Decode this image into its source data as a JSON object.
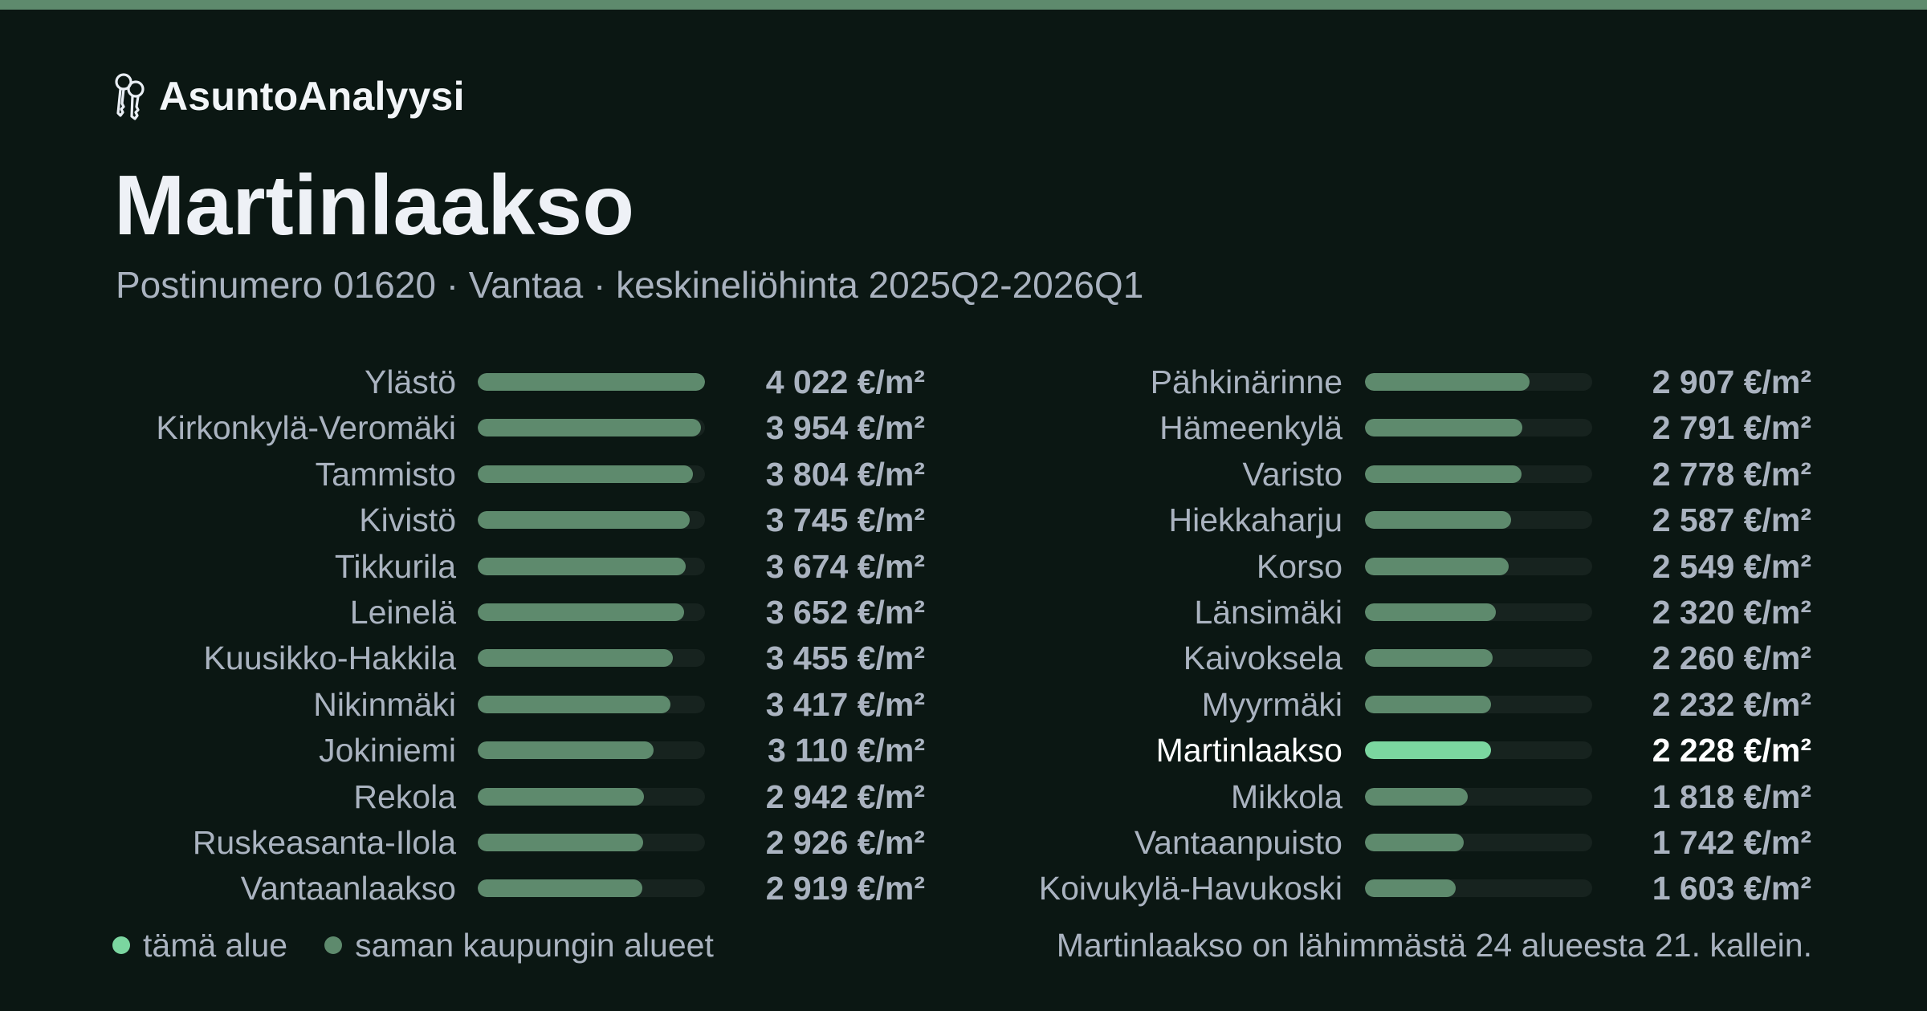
{
  "brand": {
    "name": "AsuntoAnalyysi",
    "icon": "keys-icon"
  },
  "header": {
    "title": "Martinlaakso",
    "subtitle": "Postinumero 01620 · Vantaa · keskineliöhinta 2025Q2-2026Q1"
  },
  "colors": {
    "background": "#0b1713",
    "accent_strip": "#5e8a6d",
    "bar_default": "#5e8a6d",
    "bar_highlight": "#7bd6a0",
    "bar_track": "#17231f"
  },
  "chart_data": {
    "type": "bar",
    "orientation": "horizontal",
    "unit": "€/m²",
    "xlim": [
      0,
      4022
    ],
    "highlight": "Martinlaakso",
    "categories": [
      "Ylästö",
      "Kirkonkylä-Veromäki",
      "Tammisto",
      "Kivistö",
      "Tikkurila",
      "Leinelä",
      "Kuusikko-Hakkila",
      "Nikinmäki",
      "Jokiniemi",
      "Rekola",
      "Ruskeasanta-Ilola",
      "Vantaanlaakso",
      "Pähkinärinne",
      "Hämeenkylä",
      "Varisto",
      "Hiekkaharju",
      "Korso",
      "Länsimäki",
      "Kaivoksela",
      "Myyrmäki",
      "Martinlaakso",
      "Mikkola",
      "Vantaanpuisto",
      "Koivukylä-Havukoski"
    ],
    "values": [
      4022,
      3954,
      3804,
      3745,
      3674,
      3652,
      3455,
      3417,
      3110,
      2942,
      2926,
      2919,
      2907,
      2791,
      2778,
      2587,
      2549,
      2320,
      2260,
      2232,
      2228,
      1818,
      1742,
      1603
    ],
    "value_labels": [
      "4 022 €/m²",
      "3 954 €/m²",
      "3 804 €/m²",
      "3 745 €/m²",
      "3 674 €/m²",
      "3 652 €/m²",
      "3 455 €/m²",
      "3 417 €/m²",
      "3 110 €/m²",
      "2 942 €/m²",
      "2 926 €/m²",
      "2 919 €/m²",
      "2 907 €/m²",
      "2 791 €/m²",
      "2 778 €/m²",
      "2 587 €/m²",
      "2 549 €/m²",
      "2 320 €/m²",
      "2 260 €/m²",
      "2 232 €/m²",
      "2 228 €/m²",
      "1 818 €/m²",
      "1 742 €/m²",
      "1 603 €/m²"
    ]
  },
  "legend": {
    "items": [
      {
        "label": "tämä alue",
        "color": "#7bd6a0"
      },
      {
        "label": "saman kaupungin alueet",
        "color": "#5e8a6d"
      }
    ]
  },
  "footnote": "Martinlaakso on lähimmästä 24 alueesta 21. kallein."
}
